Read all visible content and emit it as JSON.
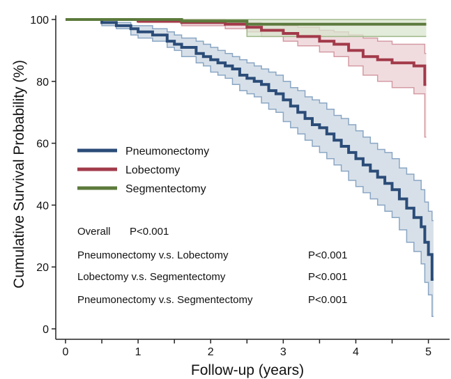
{
  "chart_data": {
    "type": "line",
    "subtype": "kaplan-meier step curves with confidence bands",
    "xlabel": "Follow-up (years)",
    "ylabel": "Cumulative Survival Probability (%)",
    "xlim": [
      0,
      5.1
    ],
    "ylim": [
      0,
      100
    ],
    "x_ticks": [
      0,
      1,
      2,
      3,
      4,
      5
    ],
    "y_ticks": [
      0,
      20,
      40,
      60,
      80,
      100
    ],
    "grid": false,
    "legend_placement": "middle-left",
    "series": [
      {
        "name": "Pneumonectomy",
        "color": "#2b4c78",
        "band_color": "#c9d5e2",
        "band_edge_color": "#8aa6c4",
        "x": [
          0,
          0.5,
          0.7,
          0.9,
          1.0,
          1.2,
          1.4,
          1.5,
          1.6,
          1.8,
          1.9,
          2.0,
          2.1,
          2.2,
          2.3,
          2.4,
          2.5,
          2.6,
          2.7,
          2.8,
          2.9,
          3.0,
          3.1,
          3.2,
          3.3,
          3.4,
          3.5,
          3.6,
          3.7,
          3.8,
          3.9,
          4.0,
          4.1,
          4.2,
          4.3,
          4.4,
          4.5,
          4.6,
          4.7,
          4.8,
          4.9,
          4.95,
          5.0,
          5.05
        ],
        "y": [
          100,
          99,
          98,
          97,
          96,
          95,
          93,
          92,
          91,
          89,
          88,
          87,
          86,
          85,
          84,
          82,
          81,
          80,
          79,
          77,
          76,
          74,
          72,
          70,
          68,
          66,
          65,
          63,
          61,
          59,
          57,
          55,
          53,
          51,
          49,
          47,
          45,
          42,
          39,
          36,
          33,
          28,
          24,
          16
        ],
        "upper": [
          100,
          100,
          99,
          98,
          98,
          97,
          96,
          95,
          94,
          93,
          92,
          91,
          90,
          89,
          88,
          87,
          86,
          85,
          84,
          83,
          82,
          80,
          78,
          77,
          75,
          74,
          73,
          71,
          69,
          68,
          66,
          64,
          62,
          60,
          58,
          57,
          55,
          52,
          50,
          48,
          45,
          41,
          38,
          35
        ],
        "lower": [
          100,
          98,
          97,
          95,
          94,
          93,
          91,
          90,
          88,
          86,
          85,
          83,
          82,
          81,
          79,
          77,
          76,
          75,
          73,
          71,
          70,
          67,
          65,
          63,
          61,
          59,
          57,
          55,
          53,
          51,
          48,
          46,
          44,
          42,
          40,
          38,
          36,
          32,
          28,
          25,
          21,
          15,
          11,
          4
        ]
      },
      {
        "name": "Lobectomy",
        "color": "#a23a4a",
        "band_color": "#ebd0d4",
        "band_edge_color": "#d49aa3",
        "x": [
          0,
          1.0,
          1.6,
          2.2,
          2.5,
          2.7,
          3.0,
          3.2,
          3.5,
          3.7,
          3.9,
          4.1,
          4.3,
          4.5,
          4.8,
          4.95
        ],
        "y": [
          100,
          99.5,
          99,
          98.5,
          97.5,
          96.5,
          95.5,
          94.5,
          93,
          92,
          90,
          88,
          87,
          86,
          85,
          79
        ],
        "upper": [
          100,
          100,
          100,
          99.5,
          99,
          98.5,
          98,
          97.5,
          96.5,
          96,
          95,
          94,
          93,
          92,
          92,
          89
        ],
        "lower": [
          100,
          99,
          98,
          97,
          96,
          94.5,
          93,
          91.5,
          89.5,
          88,
          85,
          82,
          80,
          78,
          76,
          62
        ]
      },
      {
        "name": "Segmentectomy",
        "color": "#5c7a3c",
        "band_color": "#d9e4cd",
        "band_edge_color": "#9fb88a",
        "x": [
          0,
          1.6,
          2.5,
          4.95
        ],
        "y": [
          100,
          99.5,
          98.5,
          98.5
        ],
        "upper": [
          100,
          100,
          100,
          100
        ],
        "lower": [
          100,
          99,
          94.5,
          94.5
        ]
      }
    ],
    "annotations": [
      {
        "label": "Overall",
        "p": "P<0.001"
      },
      {
        "label": "Pneumonectomy v.s. Lobectomy",
        "p": "P<0.001"
      },
      {
        "label": "Lobectomy v.s. Segmentectomy",
        "p": "P<0.001"
      },
      {
        "label": "Pneumonectomy v.s. Segmentectomy",
        "p": "P<0.001"
      }
    ]
  }
}
